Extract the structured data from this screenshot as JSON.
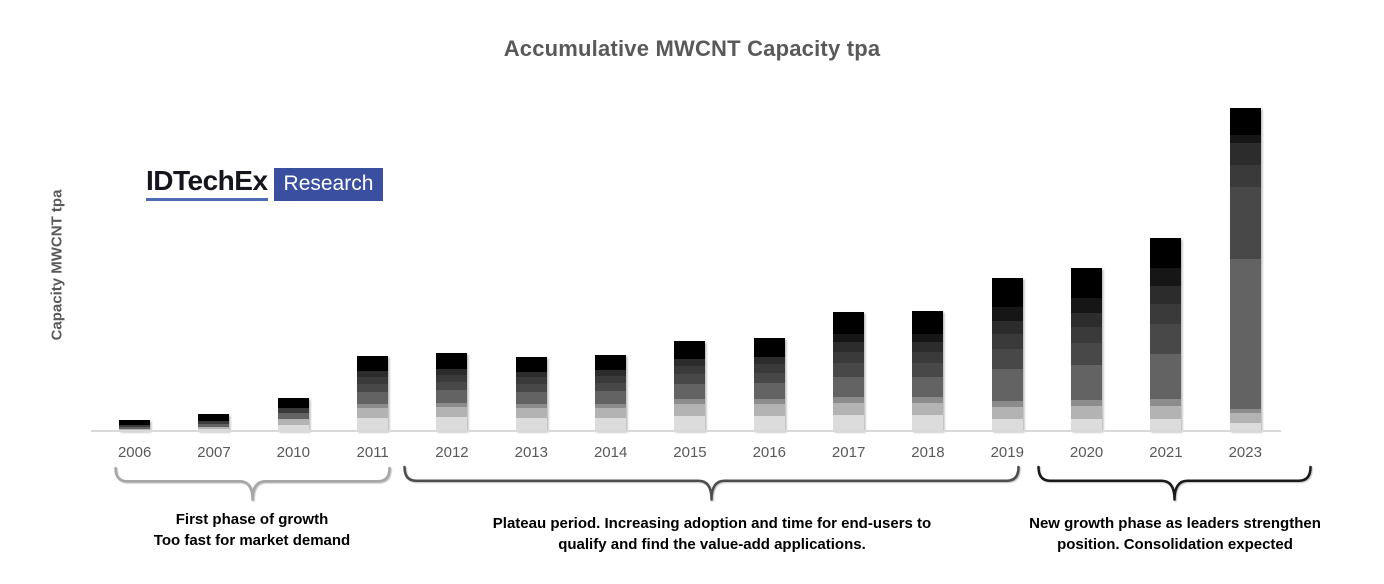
{
  "title": "Accumulative MWCNT Capacity tpa",
  "y_axis_label": "Capacity MWCNT tpa",
  "logo": {
    "brand": "IDTechEx",
    "suffix": "Research",
    "brand_color": "#15151d",
    "underline_color": "#4e6bb3",
    "box_color": "#3a4f9f",
    "box_text_color": "#ffffff"
  },
  "colors": {
    "title_text": "#595959",
    "tick_label_text": "#595959",
    "axis_line": "#d9d9d9",
    "annotation_text": "#000000",
    "background": "#ffffff"
  },
  "chart_data": {
    "type": "bar",
    "stacked": true,
    "title": "Accumulative MWCNT Capacity tpa",
    "xlabel": "",
    "ylabel": "Capacity MWCNT tpa",
    "y_axis_numbers_shown": false,
    "units": "relative height (no numeric y ticks shown in source)",
    "ylim": [
      0,
      340
    ],
    "gridlines": false,
    "legend": "none shown; stacked grayscale segments, lightest at bottom to black at top",
    "categories": [
      "2006",
      "2007",
      "2010",
      "2011",
      "2012",
      "2013",
      "2014",
      "2015",
      "2016",
      "2017",
      "2018",
      "2019",
      "2020",
      "2021",
      "2023"
    ],
    "totals": [
      11,
      17,
      33,
      75,
      78,
      74,
      76,
      90,
      93,
      119,
      120,
      153,
      163,
      193,
      323
    ],
    "series": [
      {
        "name": "shade-1-lightest",
        "color": "#dcdcdc",
        "values": [
          1,
          2,
          6,
          13,
          14,
          13,
          13,
          15,
          15,
          16,
          16,
          12,
          12,
          12,
          8
        ]
      },
      {
        "name": "shade-2",
        "color": "#b3b3b3",
        "values": [
          1,
          2,
          6,
          10,
          10,
          10,
          10,
          12,
          12,
          12,
          12,
          12,
          13,
          13,
          10
        ]
      },
      {
        "name": "shade-3",
        "color": "#8c8c8c",
        "values": [
          0,
          0,
          0,
          4,
          4,
          4,
          4,
          5,
          5,
          6,
          6,
          6,
          6,
          7,
          4
        ]
      },
      {
        "name": "shade-4",
        "color": "#636363",
        "values": [
          2,
          3,
          6,
          12,
          13,
          12,
          13,
          15,
          16,
          20,
          20,
          32,
          35,
          45,
          150
        ]
      },
      {
        "name": "shade-5",
        "color": "#484848",
        "values": [
          0,
          0,
          0,
          8,
          8,
          8,
          8,
          10,
          10,
          14,
          14,
          20,
          22,
          30,
          72
        ]
      },
      {
        "name": "shade-6",
        "color": "#3a3a3a",
        "values": [
          2,
          3,
          5,
          7,
          7,
          7,
          7,
          8,
          9,
          11,
          11,
          15,
          16,
          20,
          22
        ]
      },
      {
        "name": "shade-7",
        "color": "#2c2c2c",
        "values": [
          0,
          0,
          0,
          6,
          6,
          5,
          6,
          7,
          7,
          10,
          10,
          13,
          14,
          18,
          22
        ]
      },
      {
        "name": "shade-8",
        "color": "#161616",
        "values": [
          0,
          0,
          0,
          0,
          0,
          0,
          0,
          0,
          0,
          8,
          8,
          14,
          15,
          18,
          8
        ]
      },
      {
        "name": "shade-9-black",
        "color": "#000000",
        "values": [
          5,
          7,
          10,
          15,
          16,
          15,
          15,
          18,
          19,
          22,
          23,
          29,
          30,
          30,
          27
        ]
      }
    ]
  },
  "annotations": [
    {
      "line1": "First phase of growth",
      "line2": "Too fast for market demand",
      "brace_color": "#a6a6a6",
      "span_years": "2006-2011"
    },
    {
      "line1": "Plateau period. Increasing adoption and time for end-users to",
      "line2": "qualify and find the value-add applications.",
      "brace_color": "#4d4d4d",
      "span_years": "2012-2019"
    },
    {
      "line1": "New growth phase as leaders strengthen",
      "line2": "position. Consolidation expected",
      "brace_color": "#1a1a1a",
      "span_years": "2020-2023"
    }
  ]
}
